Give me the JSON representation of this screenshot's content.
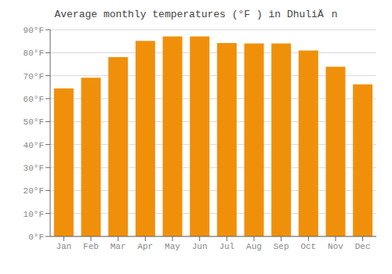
{
  "chart_data": {
    "type": "bar",
    "title": "Average monthly temperatures (°F ) in DhuliÄn",
    "categories": [
      "Jan",
      "Feb",
      "Mar",
      "Apr",
      "May",
      "Jun",
      "Jul",
      "Aug",
      "Sep",
      "Oct",
      "Nov",
      "Dec"
    ],
    "values": [
      64.4,
      69.1,
      78.1,
      85.1,
      87.1,
      87.1,
      84.2,
      84.0,
      84.0,
      81.0,
      73.9,
      66.2
    ],
    "color": "#F0900A",
    "ylim": [
      0,
      90
    ],
    "yticks": [
      {
        "value": 0,
        "label": "0°F"
      },
      {
        "value": 10,
        "label": "10°F"
      },
      {
        "value": 20,
        "label": "20°F"
      },
      {
        "value": 30,
        "label": "30°F"
      },
      {
        "value": 40,
        "label": "40°F"
      },
      {
        "value": 50,
        "label": "50°F"
      },
      {
        "value": 60,
        "label": "60°F"
      },
      {
        "value": 70,
        "label": "70°F"
      },
      {
        "value": 80,
        "label": "80°F"
      },
      {
        "value": 90,
        "label": "90°F"
      }
    ],
    "grid": true
  }
}
